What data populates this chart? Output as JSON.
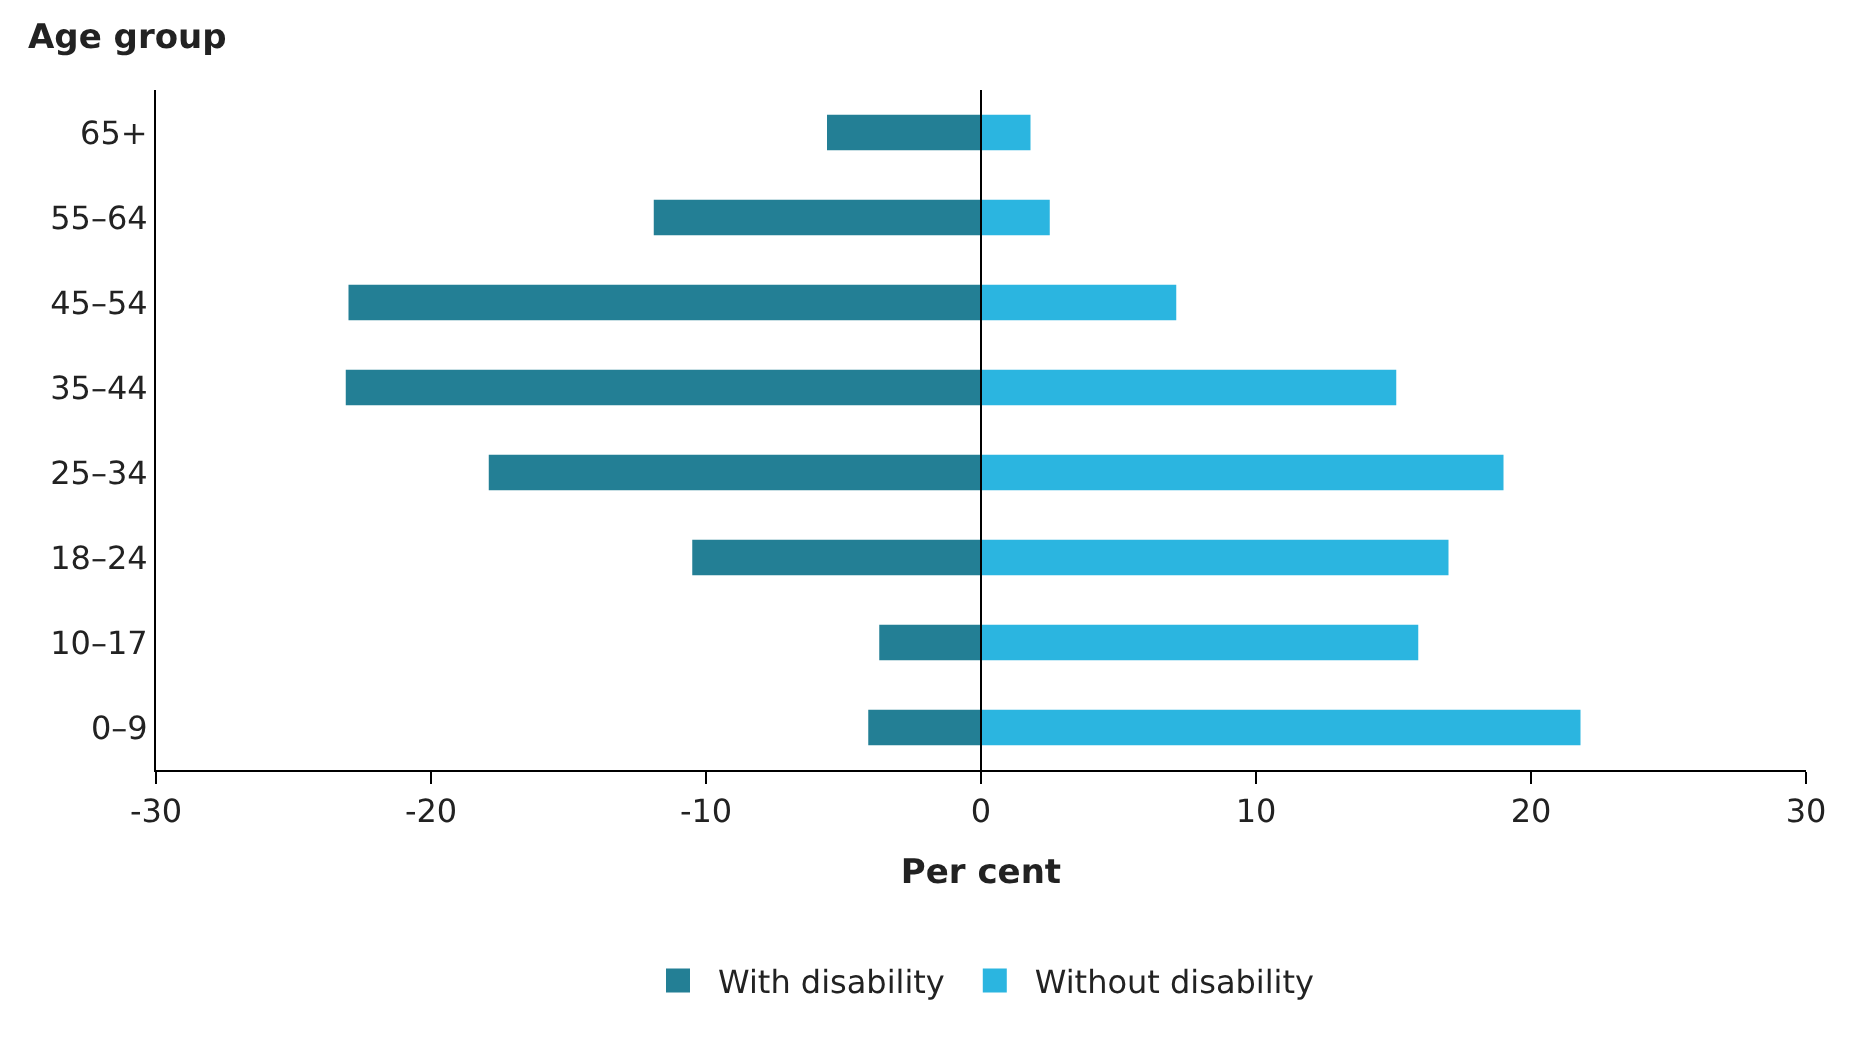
{
  "chart_data": {
    "type": "bar",
    "orientation": "horizontal",
    "xlabel": "Per cent",
    "ylabel": "Age group",
    "categories": [
      "65+",
      "55–64",
      "45–54",
      "35–44",
      "25–34",
      "18–24",
      "10–17",
      "0–9"
    ],
    "series": [
      {
        "name": "With disability",
        "color": "#237f95",
        "values": [
          -5.6,
          -11.9,
          -23.0,
          -23.1,
          -17.9,
          -10.5,
          -3.7,
          -4.1
        ]
      },
      {
        "name": "Without disability",
        "color": "#2bb5e0",
        "values": [
          1.8,
          2.5,
          7.1,
          15.1,
          19.0,
          17.0,
          15.9,
          21.8
        ]
      }
    ],
    "xlim": [
      -30,
      30
    ],
    "xticks": [
      -30,
      -20,
      -10,
      0,
      10,
      20,
      30
    ],
    "grid": false,
    "legend": "bottom",
    "stacked": true,
    "ref_lines": [
      {
        "axis": "x",
        "value": 0,
        "color": "#000000"
      }
    ]
  }
}
